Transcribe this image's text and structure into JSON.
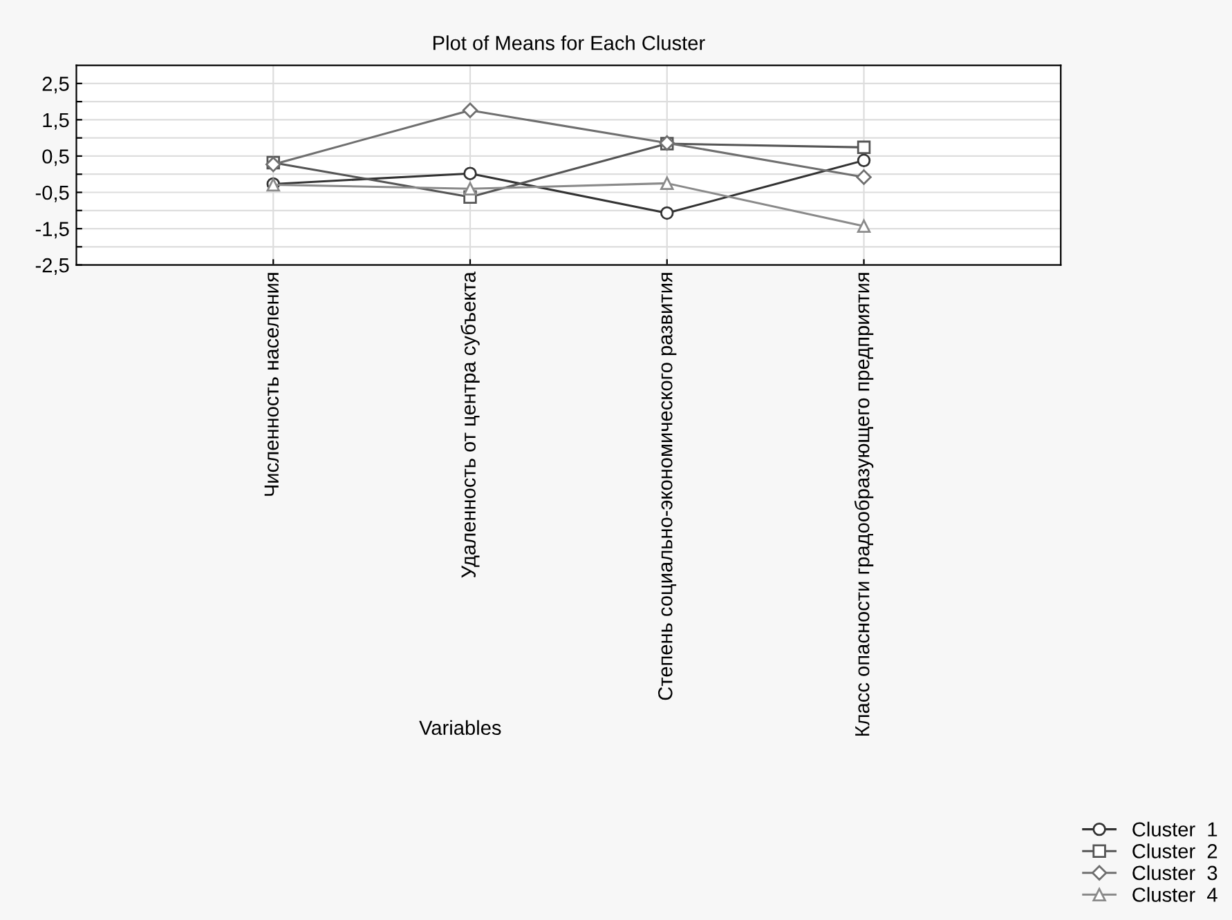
{
  "chart_data": {
    "type": "line",
    "title": "Plot of Means for Each Cluster",
    "xlabel": "Variables",
    "categories": [
      "Численность населения",
      "Удаленность от центра субъекта",
      "Степень социально-экономического развития",
      "Класс опасности градообразующего предприятия"
    ],
    "series": [
      {
        "name": "Cluster  1",
        "color": "#333333",
        "marker": "circle",
        "values": [
          -0.27,
          0.02,
          -1.07,
          0.38
        ]
      },
      {
        "name": "Cluster  2",
        "color": "#555555",
        "marker": "square",
        "values": [
          0.32,
          -0.63,
          0.84,
          0.74
        ]
      },
      {
        "name": "Cluster  3",
        "color": "#6f6f6f",
        "marker": "diamond",
        "values": [
          0.27,
          1.76,
          0.86,
          -0.08
        ]
      },
      {
        "name": "Cluster  4",
        "color": "#8a8a8a",
        "marker": "triangle",
        "values": [
          -0.29,
          -0.4,
          -0.25,
          -1.43
        ]
      }
    ],
    "ylim": [
      -2.5,
      3.0
    ],
    "yticks": [
      {
        "value": -2.5,
        "label": "-2,5"
      },
      {
        "value": -2.0,
        "label": null
      },
      {
        "value": -1.5,
        "label": "-1,5"
      },
      {
        "value": -1.0,
        "label": null
      },
      {
        "value": -0.5,
        "label": "-0,5"
      },
      {
        "value": 0.0,
        "label": null
      },
      {
        "value": 0.5,
        "label": "0,5"
      },
      {
        "value": 1.0,
        "label": null
      },
      {
        "value": 1.5,
        "label": "1,5"
      },
      {
        "value": 2.0,
        "label": null
      },
      {
        "value": 2.5,
        "label": "2,5"
      }
    ],
    "grid": true,
    "legend": "bottom right",
    "line_style": "solid"
  }
}
